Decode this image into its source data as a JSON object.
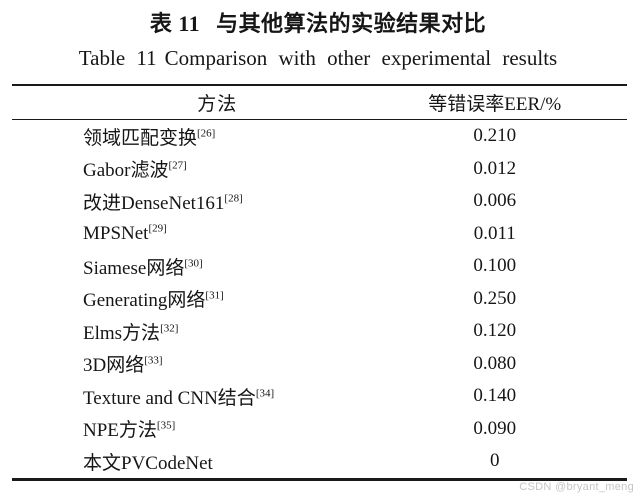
{
  "header": {
    "title_zh_label": "表 11",
    "title_zh_text": "与其他算法的实验结果对比",
    "title_en_label": "Table 11",
    "title_en_text": "Comparison with other experimental results"
  },
  "table": {
    "columns": [
      "方法",
      "等错误率EER/%"
    ],
    "rows": [
      {
        "method": "领域匹配变换",
        "ref": "[26]",
        "eer": "0.210"
      },
      {
        "method": "Gabor滤波",
        "ref": "[27]",
        "eer": "0.012"
      },
      {
        "method": "改进DenseNet161",
        "ref": "[28]",
        "eer": "0.006"
      },
      {
        "method": "MPSNet",
        "ref": "[29]",
        "eer": "0.011"
      },
      {
        "method": "Siamese网络",
        "ref": "[30]",
        "eer": "0.100"
      },
      {
        "method": "Generating网络",
        "ref": "[31]",
        "eer": "0.250"
      },
      {
        "method": "Elms方法",
        "ref": "[32]",
        "eer": "0.120"
      },
      {
        "method": "3D网络",
        "ref": "[33]",
        "eer": "0.080"
      },
      {
        "method": "Texture and CNN结合",
        "ref": "[34]",
        "eer": "0.140"
      },
      {
        "method": "NPE方法",
        "ref": "[35]",
        "eer": "0.090"
      },
      {
        "method": "本文PVCodeNet",
        "ref": "",
        "eer": "0"
      }
    ]
  },
  "chart_data": {
    "type": "table",
    "title": "表11 与其他算法的实验结果对比 / Table 11 Comparison with other experimental results",
    "columns": [
      "方法",
      "等错误率EER/%"
    ],
    "rows": [
      [
        "领域匹配变换[26]",
        "0.210"
      ],
      [
        "Gabor滤波[27]",
        "0.012"
      ],
      [
        "改进DenseNet161[28]",
        "0.006"
      ],
      [
        "MPSNet[29]",
        "0.011"
      ],
      [
        "Siamese网络[30]",
        "0.100"
      ],
      [
        "Generating网络[31]",
        "0.250"
      ],
      [
        "Elms方法[32]",
        "0.120"
      ],
      [
        "3D网络[33]",
        "0.080"
      ],
      [
        "Texture and CNN结合[34]",
        "0.140"
      ],
      [
        "NPE方法[35]",
        "0.090"
      ],
      [
        "本文PVCodeNet",
        "0"
      ]
    ]
  },
  "watermark": {
    "text": "CSDN @bryant_meng",
    "color": "#c5c5c5"
  },
  "colors": {
    "text": "#161616",
    "rule": "#1a1a1a",
    "background": "#ffffff"
  }
}
